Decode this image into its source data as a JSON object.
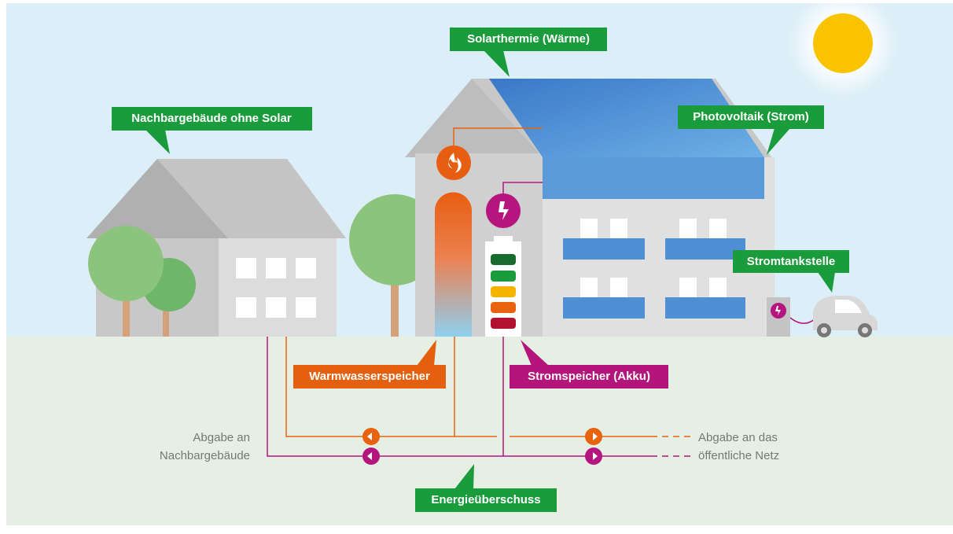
{
  "labels": {
    "solarthermie": "Solarthermie (Wärme)",
    "nachbar": "Nachbargebäude ohne Solar",
    "photovoltaik": "Photovoltaik (Strom)",
    "stromtankstelle": "Stromtankstelle",
    "warmwasserspeicher": "Warmwasserspeicher",
    "stromspeicher": "Stromspeicher (Akku)",
    "energieueberschuss": "Energieüberschuss",
    "abgabe_nachbar": [
      "Abgabe an",
      "Nachbargebäude"
    ],
    "abgabe_netz": [
      "Abgabe an das",
      "öffentliche Netz"
    ]
  }
}
